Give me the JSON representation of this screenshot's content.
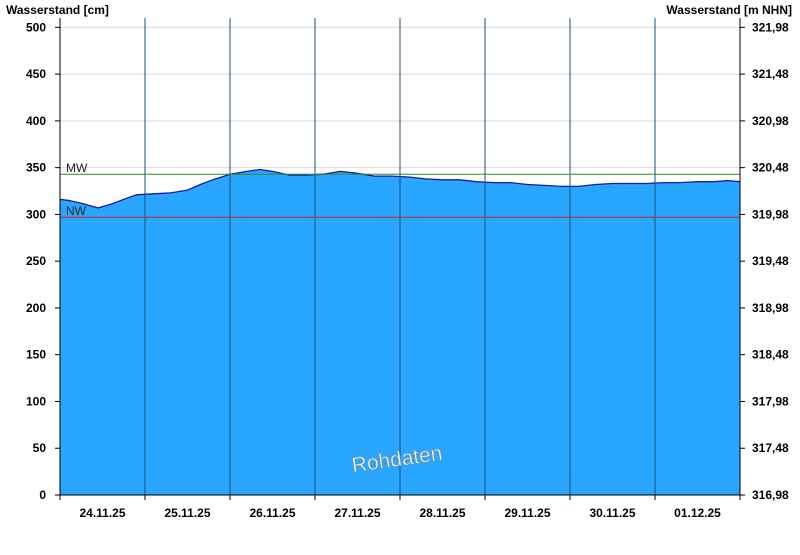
{
  "chart_data": {
    "type": "area",
    "left_axis_title": "Wasserstand [cm]",
    "right_axis_title": "Wasserstand [m NHN]",
    "left_ticks": [
      0,
      50,
      100,
      150,
      200,
      250,
      300,
      350,
      400,
      450,
      500
    ],
    "right_ticks": [
      "316,98",
      "317,48",
      "317,98",
      "318,48",
      "318,98",
      "319,48",
      "319,98",
      "320,48",
      "320,98",
      "321,48",
      "321,98"
    ],
    "ylim": [
      0,
      510
    ],
    "x_labels": [
      "24.11.25",
      "25.11.25",
      "26.11.25",
      "27.11.25",
      "28.11.25",
      "29.11.25",
      "30.11.25",
      "01.12.25"
    ],
    "x_range_days": [
      0,
      8
    ],
    "reference_lines": [
      {
        "label": "MW",
        "value": 343,
        "color": "#2e8b2e"
      },
      {
        "label": "NW",
        "value": 297,
        "color": "#cc2222"
      }
    ],
    "series": [
      {
        "color_fill": "#29a6ff",
        "color_line": "#1a1aa8",
        "points": [
          [
            0.0,
            316
          ],
          [
            0.1,
            315
          ],
          [
            0.25,
            312
          ],
          [
            0.45,
            307
          ],
          [
            0.6,
            311
          ],
          [
            0.75,
            316
          ],
          [
            0.9,
            321
          ],
          [
            1.1,
            322
          ],
          [
            1.3,
            323
          ],
          [
            1.5,
            326
          ],
          [
            1.65,
            332
          ],
          [
            1.8,
            337
          ],
          [
            2.0,
            343
          ],
          [
            2.2,
            346
          ],
          [
            2.35,
            348
          ],
          [
            2.5,
            346
          ],
          [
            2.7,
            342
          ],
          [
            2.9,
            342
          ],
          [
            3.1,
            343
          ],
          [
            3.3,
            346
          ],
          [
            3.5,
            344
          ],
          [
            3.7,
            341
          ],
          [
            3.9,
            341
          ],
          [
            4.1,
            340
          ],
          [
            4.3,
            338
          ],
          [
            4.5,
            337
          ],
          [
            4.7,
            337
          ],
          [
            4.9,
            335
          ],
          [
            5.1,
            334
          ],
          [
            5.3,
            334
          ],
          [
            5.5,
            332
          ],
          [
            5.7,
            331
          ],
          [
            5.9,
            330
          ],
          [
            6.1,
            330
          ],
          [
            6.3,
            332
          ],
          [
            6.5,
            333
          ],
          [
            6.7,
            333
          ],
          [
            6.9,
            333
          ],
          [
            7.1,
            334
          ],
          [
            7.3,
            334
          ],
          [
            7.5,
            335
          ],
          [
            7.7,
            335
          ],
          [
            7.85,
            336
          ],
          [
            8.0,
            335
          ]
        ]
      }
    ],
    "watermark": "Rohdaten",
    "grid": "vertical day lines and horizontal lines at left ticks"
  }
}
